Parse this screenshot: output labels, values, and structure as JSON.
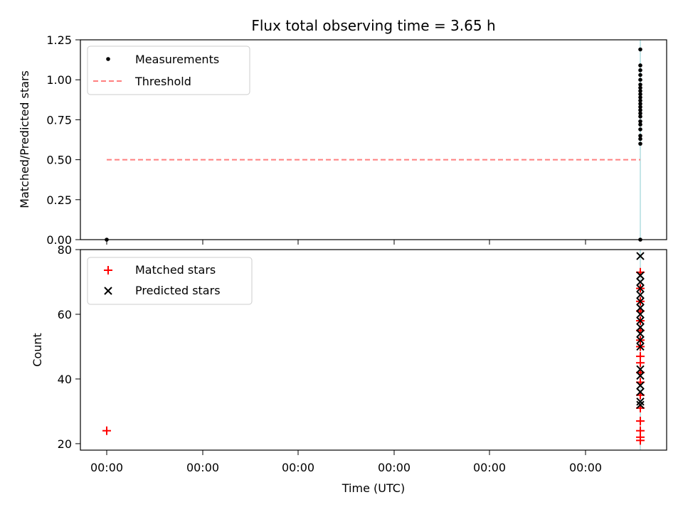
{
  "chart_data": [
    {
      "type": "scatter",
      "title": "Flux total observing time = 3.65 h",
      "ylabel": "Matched/Predicted stars",
      "ylim": [
        0,
        1.25
      ],
      "yticks": [
        "0.00",
        "0.25",
        "0.50",
        "0.75",
        "1.00",
        "1.25"
      ],
      "xticks": [
        "",
        "",
        "",
        "",
        "",
        ""
      ],
      "legend_position": "top-left",
      "colors": {
        "measurements": "#000000",
        "threshold": "#ff7f7f",
        "marker_line": "#b0dde0"
      },
      "series": [
        {
          "name": "Measurements",
          "style": "dot",
          "points": [
            {
              "x": 0,
              "y": 0.0
            },
            {
              "x": 1,
              "y": 1.19
            },
            {
              "x": 1,
              "y": 1.09
            },
            {
              "x": 1,
              "y": 1.06
            },
            {
              "x": 1,
              "y": 1.03
            },
            {
              "x": 1,
              "y": 1.0
            },
            {
              "x": 1,
              "y": 0.97
            },
            {
              "x": 1,
              "y": 0.95
            },
            {
              "x": 1,
              "y": 0.93
            },
            {
              "x": 1,
              "y": 0.91
            },
            {
              "x": 1,
              "y": 0.89
            },
            {
              "x": 1,
              "y": 0.87
            },
            {
              "x": 1,
              "y": 0.85
            },
            {
              "x": 1,
              "y": 0.83
            },
            {
              "x": 1,
              "y": 0.81
            },
            {
              "x": 1,
              "y": 0.79
            },
            {
              "x": 1,
              "y": 0.77
            },
            {
              "x": 1,
              "y": 0.74
            },
            {
              "x": 1,
              "y": 0.72
            },
            {
              "x": 1,
              "y": 0.69
            },
            {
              "x": 1,
              "y": 0.65
            },
            {
              "x": 1,
              "y": 0.63
            },
            {
              "x": 1,
              "y": 0.6
            },
            {
              "x": 1,
              "y": 0.0
            }
          ]
        },
        {
          "name": "Threshold",
          "style": "dashed-line",
          "points": [
            {
              "x": 0,
              "y": 0.5
            },
            {
              "x": 1,
              "y": 0.5
            }
          ]
        }
      ]
    },
    {
      "type": "scatter",
      "xlabel": "Time (UTC)",
      "ylabel": "Count",
      "ylim": [
        18,
        80
      ],
      "yticks": [
        "20",
        "40",
        "60",
        "80"
      ],
      "xticks": [
        "00:00",
        "00:00",
        "00:00",
        "00:00",
        "00:00",
        "00:00"
      ],
      "legend_position": "top-left",
      "colors": {
        "matched": "#ff0000",
        "predicted": "#000000",
        "marker_line": "#b0dde0"
      },
      "series": [
        {
          "name": "Matched stars",
          "marker": "+",
          "points": [
            {
              "x": 0,
              "y": 24
            },
            {
              "x": 1,
              "y": 73
            },
            {
              "x": 1,
              "y": 68
            },
            {
              "x": 1,
              "y": 64
            },
            {
              "x": 1,
              "y": 61
            },
            {
              "x": 1,
              "y": 58
            },
            {
              "x": 1,
              "y": 55
            },
            {
              "x": 1,
              "y": 52
            },
            {
              "x": 1,
              "y": 50
            },
            {
              "x": 1,
              "y": 47
            },
            {
              "x": 1,
              "y": 45
            },
            {
              "x": 1,
              "y": 42
            },
            {
              "x": 1,
              "y": 39
            },
            {
              "x": 1,
              "y": 35
            },
            {
              "x": 1,
              "y": 31
            },
            {
              "x": 1,
              "y": 27
            },
            {
              "x": 1,
              "y": 24
            },
            {
              "x": 1,
              "y": 22
            },
            {
              "x": 1,
              "y": 21
            }
          ]
        },
        {
          "name": "Predicted stars",
          "marker": "x",
          "points": [
            {
              "x": 1,
              "y": 78
            },
            {
              "x": 1,
              "y": 72
            },
            {
              "x": 1,
              "y": 70
            },
            {
              "x": 1,
              "y": 68
            },
            {
              "x": 1,
              "y": 66
            },
            {
              "x": 1,
              "y": 64
            },
            {
              "x": 1,
              "y": 62
            },
            {
              "x": 1,
              "y": 60
            },
            {
              "x": 1,
              "y": 58
            },
            {
              "x": 1,
              "y": 56
            },
            {
              "x": 1,
              "y": 54
            },
            {
              "x": 1,
              "y": 52
            },
            {
              "x": 1,
              "y": 50
            },
            {
              "x": 1,
              "y": 43
            },
            {
              "x": 1,
              "y": 41
            },
            {
              "x": 1,
              "y": 38
            },
            {
              "x": 1,
              "y": 36
            },
            {
              "x": 1,
              "y": 33
            },
            {
              "x": 1,
              "y": 32
            }
          ]
        }
      ]
    }
  ]
}
